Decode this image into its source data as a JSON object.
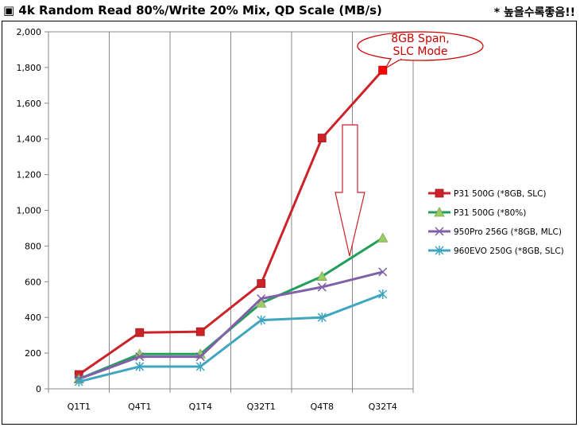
{
  "header": {
    "title": "▣ 4k Random Read 80%/Write 20% Mix, QD Scale (MB/s)",
    "note": "* 높을수록좋음!!"
  },
  "chart_data": {
    "type": "line",
    "categories": [
      "Q1T1",
      "Q4T1",
      "Q1T4",
      "Q32T1",
      "Q4T8",
      "Q32T4"
    ],
    "ylim": [
      0,
      2000
    ],
    "yticks": [
      0,
      200,
      400,
      600,
      800,
      1000,
      1200,
      1400,
      1600,
      1800,
      2000
    ],
    "ytick_labels": [
      "0",
      "200",
      "400",
      "600",
      "800",
      "1,000",
      "1,200",
      "1,400",
      "1,600",
      "1,800",
      "2,000"
    ],
    "grid": "vertical",
    "legend": "right",
    "series": [
      {
        "name": "P31 500G (*8GB, SLC)",
        "color": "#cc2228",
        "marker": "square",
        "values": [
          80,
          315,
          320,
          590,
          1405,
          1785
        ]
      },
      {
        "name": "P31 500G (*80%)",
        "color": "#22a05a",
        "marker": "triangle",
        "values": [
          55,
          195,
          195,
          480,
          630,
          845
        ]
      },
      {
        "name": "950Pro 256G (*8GB, MLC)",
        "color": "#8060a8",
        "marker": "x",
        "values": [
          55,
          180,
          180,
          505,
          570,
          655
        ]
      },
      {
        "name": "960EVO 250G (*8GB, SLC)",
        "color": "#40a6c0",
        "marker": "asterisk",
        "values": [
          40,
          125,
          125,
          385,
          400,
          530
        ]
      }
    ],
    "annotation": {
      "lines": [
        "8GB Span,",
        "SLC Mode"
      ],
      "color": "#cc0000"
    }
  }
}
